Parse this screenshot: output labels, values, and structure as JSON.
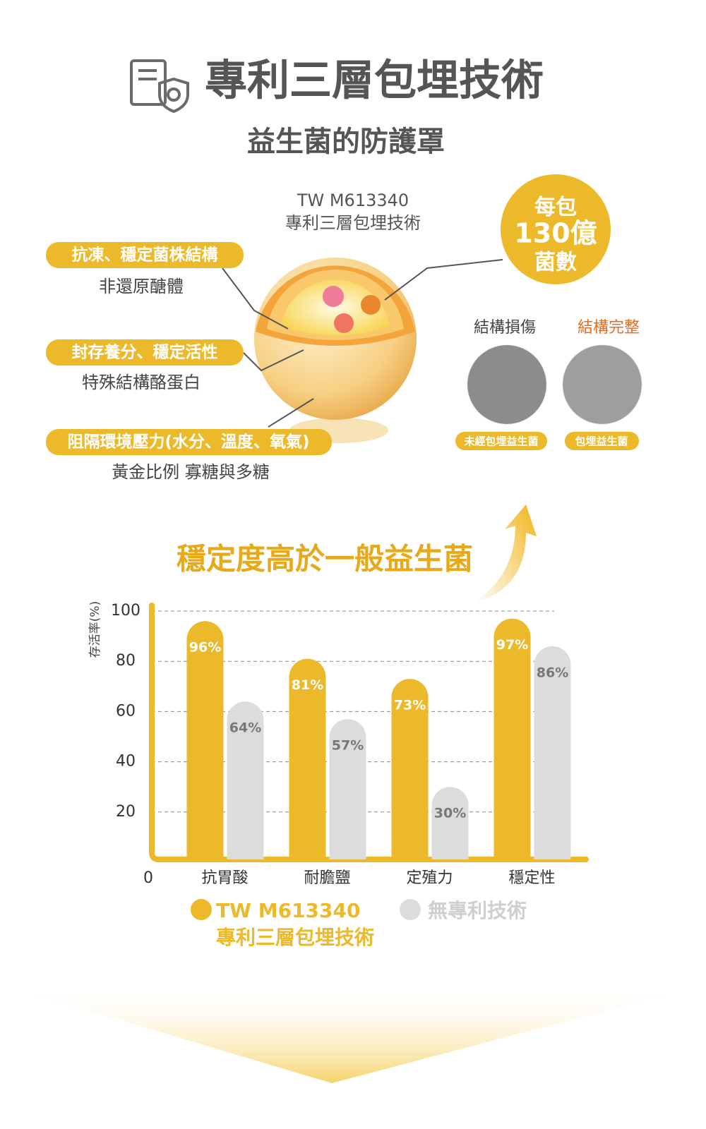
{
  "header": {
    "title": "專利三層包埋技術",
    "subtitle": "益生菌的防護罩"
  },
  "diagram": {
    "patent_number": "TW M613340",
    "patent_name": "專利三層包埋技術",
    "count": [
      "每包",
      "130億",
      "菌數"
    ],
    "features": [
      {
        "label": "抗凍、穩定菌株結構",
        "detail": "非還原醣體"
      },
      {
        "label": "封存養分、穩定活性",
        "detail": "特殊結構酪蛋白"
      },
      {
        "label": "阻隔環境壓力(水分、溫度、氧氣)",
        "detail": "黃金比例 寡糖與多糖"
      }
    ],
    "comparison": {
      "damaged": "結構損傷",
      "intact": "結構完整",
      "untreated_tag": "未經包埋益生菌",
      "treated_tag": "包埋益生菌"
    }
  },
  "chart_data": {
    "type": "bar",
    "title": "穩定度高於一般益生菌",
    "y_label": "存活率(%)",
    "categories": [
      "抗胃酸",
      "耐膽鹽",
      "定殖力",
      "穩定性"
    ],
    "series": [
      {
        "name": "TW M613340\n專利三層包埋技術",
        "color": "#ebb929",
        "values": [
          96,
          81,
          73,
          97
        ],
        "value_labels": [
          "96%",
          "81%",
          "73%",
          "97%"
        ]
      },
      {
        "name": "無專利技術",
        "color": "#dcdcdc",
        "values": [
          64,
          57,
          30,
          86
        ],
        "value_labels": [
          "64%",
          "57%",
          "30%",
          "86%"
        ]
      }
    ],
    "ylim": [
      0,
      100
    ],
    "yticks": [
      0,
      20,
      40,
      60,
      80,
      100
    ],
    "grid": true
  }
}
